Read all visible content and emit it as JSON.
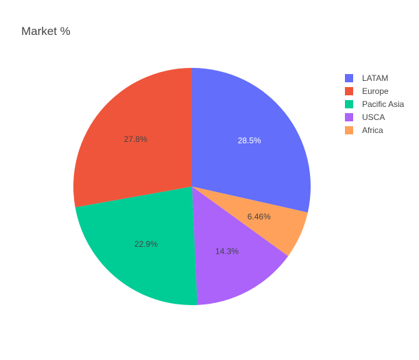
{
  "chart_data": {
    "type": "pie",
    "title": "Market %",
    "labels": [
      "LATAM",
      "Europe",
      "Pacific Asia",
      "USCA",
      "Africa"
    ],
    "values": [
      28.5,
      27.8,
      22.9,
      14.3,
      6.46
    ],
    "value_labels": [
      "28.5%",
      "27.8%",
      "22.9%",
      "14.3%",
      "6.46%"
    ],
    "colors": [
      "#636efa",
      "#ef553b",
      "#00cc96",
      "#ab63fa",
      "#ffa15a"
    ],
    "label_colors": [
      "#ffffff",
      "#444444",
      "#444444",
      "#444444",
      "#444444"
    ],
    "slice_order": [
      0,
      4,
      3,
      2,
      1
    ],
    "direction": "clockwise",
    "start_angle_deg": 0,
    "legend_position": "top-right"
  }
}
